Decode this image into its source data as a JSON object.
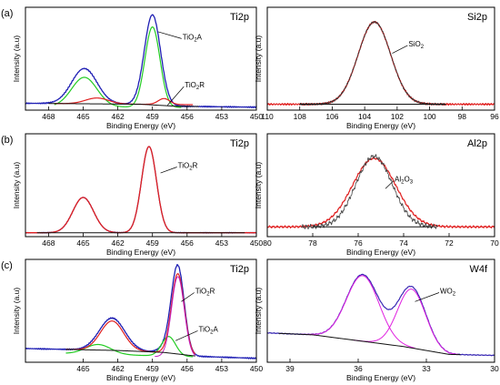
{
  "chart_data": [
    {
      "id": "a-left",
      "type": "line",
      "panel_label": "(a)",
      "corner_label": "Ti2p",
      "xlabel": "Binding Energy (eV)",
      "ylabel": "Intensity (a.u)",
      "xlim": [
        470,
        450
      ],
      "ylim": [
        0,
        1.05
      ],
      "xticks": [
        468,
        465,
        462,
        459,
        456,
        453,
        450
      ],
      "annotations": [
        {
          "parts": [
            "TiO",
            "2",
            "A"
          ],
          "x": 456.4,
          "y": 0.74,
          "ax": 458.5,
          "ay": 0.8
        },
        {
          "parts": [
            "TiO",
            "2",
            "R"
          ],
          "x": 456.2,
          "y": 0.25,
          "ax": 457.7,
          "ay": 0.05
        }
      ],
      "series": [
        {
          "color": "#1f1fb4",
          "width": 1.3,
          "baseline": {
            "x": [
              470,
              460,
              457,
              450
            ],
            "y": [
              0.07,
              0.06,
              0.04,
              0.03
            ]
          },
          "peaks": [
            {
              "c": 464.9,
              "a": 0.36,
              "w": 1.1
            },
            {
              "c": 459.0,
              "a": 0.92,
              "w": 0.7
            }
          ],
          "noise": 0.006
        },
        {
          "color": "#22cc22",
          "width": 1.2,
          "baseline": {
            "x": [
              470,
              450
            ],
            "y": [
              0.04,
              0.02
            ]
          },
          "peaks": [
            {
              "c": 464.9,
              "a": 0.3,
              "w": 1.1
            },
            {
              "c": 459.0,
              "a": 0.82,
              "w": 0.65
            }
          ],
          "range": [
            467.5,
            456.5
          ]
        },
        {
          "color": "#e02020",
          "width": 1.2,
          "baseline": {
            "x": [
              470,
              450
            ],
            "y": [
              0.07,
              0.05
            ]
          },
          "peaks": [
            {
              "c": 463.8,
              "a": 0.06,
              "w": 1.0
            },
            {
              "c": 458.0,
              "a": 0.06,
              "w": 0.5
            }
          ],
          "range": [
            467.5,
            455.5
          ]
        },
        {
          "color": "#111111",
          "width": 1.0,
          "baseline": {
            "x": [
              470,
              460,
              457,
              450
            ],
            "y": [
              0.07,
              0.06,
              0.04,
              0.03
            ]
          },
          "peaks": [],
          "range": [
            468,
            455
          ]
        }
      ]
    },
    {
      "id": "a-right",
      "type": "line",
      "panel_label": "",
      "corner_label": "Si2p",
      "xlabel": "Binding Energy (eV)",
      "ylabel": "Intensity (a.u)",
      "xlim": [
        110,
        96
      ],
      "ylim": [
        0,
        1.05
      ],
      "xticks": [
        110,
        108,
        106,
        104,
        102,
        100,
        98,
        96
      ],
      "annotations": [
        {
          "parts": [
            "SiO",
            "2",
            ""
          ],
          "x": 101.3,
          "y": 0.67,
          "ax": 102.3,
          "ay": 0.58
        }
      ],
      "series": [
        {
          "color": "#e02020",
          "width": 1.2,
          "baseline": {
            "x": [
              110,
              96
            ],
            "y": [
              0.06,
              0.06
            ]
          },
          "peaks": [
            {
              "c": 103.4,
              "a": 0.84,
              "w": 1.0
            }
          ],
          "noise": 0.01
        },
        {
          "color": "#333333",
          "width": 0.8,
          "baseline": {
            "x": [
              110,
              96
            ],
            "y": [
              0.06,
              0.06
            ]
          },
          "peaks": [
            {
              "c": 103.4,
              "a": 0.84,
              "w": 1.0
            }
          ],
          "noise": 0.012,
          "range": [
            108,
            99
          ]
        },
        {
          "color": "#111111",
          "width": 1.0,
          "baseline": {
            "x": [
              110,
              96
            ],
            "y": [
              0.06,
              0.06
            ]
          },
          "peaks": [],
          "range": [
            108,
            99
          ]
        }
      ]
    },
    {
      "id": "b-left",
      "type": "line",
      "panel_label": "(b)",
      "corner_label": "Ti2p",
      "xlabel": "Binding Energy (eV)",
      "ylabel": "Intensity (a.u)",
      "xlim": [
        470,
        450
      ],
      "ylim": [
        0,
        1.05
      ],
      "xticks": [
        468,
        465,
        462,
        459,
        456,
        453,
        450
      ],
      "annotations": [
        {
          "parts": [
            "TiO",
            "2",
            "R"
          ],
          "x": 456.8,
          "y": 0.72,
          "ax": 458.3,
          "ay": 0.65
        }
      ],
      "series": [
        {
          "color": "#1f1fb4",
          "width": 1.2,
          "baseline": {
            "x": [
              470,
              450
            ],
            "y": [
              0.04,
              0.04
            ]
          },
          "peaks": [
            {
              "c": 465.0,
              "a": 0.36,
              "w": 0.9
            },
            {
              "c": 459.3,
              "a": 0.88,
              "w": 0.65
            }
          ],
          "noise": 0.004
        },
        {
          "color": "#e02020",
          "width": 1.3,
          "baseline": {
            "x": [
              470,
              450
            ],
            "y": [
              0.04,
              0.04
            ]
          },
          "peaks": [
            {
              "c": 465.0,
              "a": 0.36,
              "w": 0.9
            },
            {
              "c": 459.3,
              "a": 0.88,
              "w": 0.65
            }
          ]
        },
        {
          "color": "#111111",
          "width": 1.0,
          "baseline": {
            "x": [
              470,
              450
            ],
            "y": [
              0.04,
              0.04
            ]
          },
          "peaks": [],
          "range": [
            469,
            451
          ]
        }
      ]
    },
    {
      "id": "b-right",
      "type": "line",
      "panel_label": "",
      "corner_label": "Al2p",
      "xlabel": "Binding Energy (eV)",
      "ylabel": "Intensity (a.u)",
      "xlim": [
        80,
        70
      ],
      "ylim": [
        0,
        1.05
      ],
      "xticks": [
        80,
        78,
        76,
        74,
        72,
        70
      ],
      "annotations": [
        {
          "parts": [
            "Al",
            "2",
            "O",
            "3",
            ""
          ],
          "x": 74.4,
          "y": 0.58,
          "ax": 74.8,
          "ay": 0.49
        }
      ],
      "series": [
        {
          "color": "#e02020",
          "width": 1.2,
          "baseline": {
            "x": [
              80,
              70
            ],
            "y": [
              0.1,
              0.1
            ]
          },
          "peaks": [
            {
              "c": 75.3,
              "a": 0.7,
              "w": 0.95
            }
          ],
          "noise": 0.012
        },
        {
          "color": "#444444",
          "width": 0.8,
          "baseline": {
            "x": [
              80,
              70
            ],
            "y": [
              0.1,
              0.1
            ]
          },
          "peaks": [
            {
              "c": 75.3,
              "a": 0.72,
              "w": 0.8
            }
          ],
          "noise": 0.025,
          "range": [
            78.5,
            72.5
          ]
        },
        {
          "color": "#111111",
          "width": 1.0,
          "baseline": {
            "x": [
              80,
              70
            ],
            "y": [
              0.1,
              0.1
            ]
          },
          "peaks": [],
          "range": [
            78,
            72.7
          ]
        }
      ]
    },
    {
      "id": "c-left",
      "type": "line",
      "panel_label": "(c)",
      "corner_label": "Ti2p",
      "xlabel": "Binding Energy (eV)",
      "ylabel": "Intensity (a.u)",
      "xlim": [
        470,
        450
      ],
      "ylim": [
        0,
        1.05
      ],
      "xticks": [
        465,
        462,
        459,
        456,
        453,
        450
      ],
      "annotations": [
        {
          "parts": [
            "TiO",
            "2",
            "R"
          ],
          "x": 455.3,
          "y": 0.72,
          "ax": 456.5,
          "ay": 0.62
        },
        {
          "parts": [
            "TiO",
            "2",
            "A"
          ],
          "x": 455.0,
          "y": 0.33,
          "ax": 457.0,
          "ay": 0.22
        }
      ],
      "series": [
        {
          "color": "#1f1fb4",
          "width": 1.3,
          "baseline": {
            "x": [
              470,
              462,
              458,
              455,
              450
            ],
            "y": [
              0.14,
              0.12,
              0.1,
              0.06,
              0.04
            ]
          },
          "peaks": [
            {
              "c": 462.5,
              "a": 0.33,
              "w": 1.1
            },
            {
              "c": 456.8,
              "a": 0.86,
              "w": 0.55
            },
            {
              "c": 457.5,
              "a": 0.08,
              "w": 0.7
            }
          ],
          "noise": 0.006
        },
        {
          "color": "#22cc22",
          "width": 1.2,
          "baseline": {
            "x": [
              470,
              450
            ],
            "y": [
              0.1,
              0.04
            ]
          },
          "peaks": [
            {
              "c": 463.7,
              "a": 0.1,
              "w": 1.1
            },
            {
              "c": 457.6,
              "a": 0.2,
              "w": 0.6
            }
          ],
          "range": [
            466.5,
            455.5
          ]
        },
        {
          "color": "#e02020",
          "width": 1.2,
          "baseline": {
            "x": [
              470,
              462,
              458,
              455,
              450
            ],
            "y": [
              0.14,
              0.12,
              0.1,
              0.06,
              0.04
            ]
          },
          "peaks": [
            {
              "c": 462.5,
              "a": 0.3,
              "w": 1.0
            },
            {
              "c": 456.8,
              "a": 0.82,
              "w": 0.55
            }
          ],
          "range": [
            466.5,
            455.3
          ]
        },
        {
          "color": "#c020c0",
          "width": 1.0,
          "baseline": {
            "x": [
              470,
              450
            ],
            "y": [
              0.08,
              0.04
            ]
          },
          "peaks": [
            {
              "c": 456.8,
              "a": 0.82,
              "w": 0.55
            }
          ],
          "range": [
            458.8,
            455.3
          ]
        },
        {
          "color": "#111111",
          "width": 1.0,
          "baseline": {
            "x": [
              470,
              462,
              458,
              455,
              450
            ],
            "y": [
              0.14,
              0.12,
              0.1,
              0.06,
              0.04
            ]
          },
          "peaks": [],
          "range": [
            466.5,
            455.3
          ]
        }
      ]
    },
    {
      "id": "c-right",
      "type": "line",
      "panel_label": "",
      "corner_label": "W4f",
      "xlabel": "Binding Energy (eV)",
      "ylabel": "Intensity (a.u)",
      "xlim": [
        40,
        30
      ],
      "ylim": [
        0,
        1.05
      ],
      "xticks": [
        39,
        36,
        33,
        30
      ],
      "annotations": [
        {
          "parts": [
            "WO",
            "2",
            ""
          ],
          "x": 32.4,
          "y": 0.72,
          "ax": 33.5,
          "ay": 0.62
        }
      ],
      "series": [
        {
          "color": "#3a2ab4",
          "width": 1.2,
          "baseline": {
            "x": [
              40,
              38,
              34,
              32,
              30
            ],
            "y": [
              0.3,
              0.28,
              0.16,
              0.08,
              0.07
            ]
          },
          "peaks": [
            {
              "c": 35.8,
              "a": 0.68,
              "w": 0.72
            },
            {
              "c": 33.65,
              "a": 0.62,
              "w": 0.62
            }
          ],
          "noise": 0.004
        },
        {
          "color": "#e020e0",
          "width": 1.0,
          "baseline": {
            "x": [
              40,
              38,
              34,
              32,
              30
            ],
            "y": [
              0.3,
              0.28,
              0.16,
              0.08,
              0.07
            ]
          },
          "peaks": [
            {
              "c": 35.8,
              "a": 0.67,
              "w": 0.72
            }
          ],
          "range": [
            38.5,
            33.5
          ]
        },
        {
          "color": "#e020e0",
          "width": 1.0,
          "baseline": {
            "x": [
              40,
              38,
              34,
              32,
              30
            ],
            "y": [
              0.3,
              0.28,
              0.16,
              0.08,
              0.07
            ]
          },
          "peaks": [
            {
              "c": 33.65,
              "a": 0.6,
              "w": 0.62
            }
          ],
          "range": [
            36.2,
            31.6
          ]
        },
        {
          "color": "#111111",
          "width": 1.0,
          "baseline": {
            "x": [
              40,
              38,
              34,
              32,
              30
            ],
            "y": [
              0.3,
              0.28,
              0.16,
              0.08,
              0.07
            ]
          },
          "peaks": [],
          "range": [
            39.5,
            31.5
          ]
        }
      ]
    }
  ]
}
